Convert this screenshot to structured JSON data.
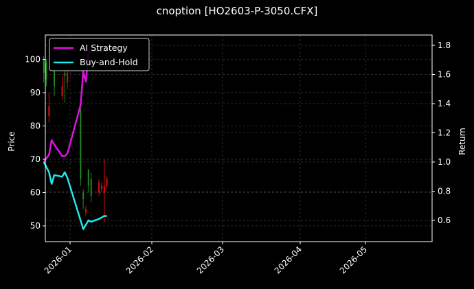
{
  "chart_data": {
    "type": "line",
    "title": "cnoption [HO2603-P-3050.CFX]",
    "xlabel": "",
    "ylabel": "Price",
    "y2label": "Return",
    "grid": true,
    "legend_position": "upper left",
    "x_ticks": [
      "2026-01",
      "2026-02",
      "2026-03",
      "2026-04",
      "2026-05"
    ],
    "y_ticks": [
      50,
      60,
      70,
      80,
      90,
      100
    ],
    "y2_ticks": [
      "0.6",
      "0.8",
      "1.0",
      "1.2",
      "1.4",
      "1.6",
      "1.8"
    ],
    "ylim": [
      45.2,
      107.3
    ],
    "y2lim": [
      0.45,
      1.87
    ],
    "legend": [
      "AI Strategy",
      "Buy-and-Hold"
    ],
    "colors": {
      "ai_strategy": "#e012e0",
      "buy_and_hold": "#22e8e8",
      "candle_up": "#1f8a1f",
      "candle_down": "#e01010",
      "background": "#000000",
      "grid": "#3a3a3a"
    },
    "series": [
      {
        "name": "AI Strategy",
        "axis": "right",
        "x": [
          "2025-12-22",
          "2025-12-24",
          "2025-12-25",
          "2025-12-26",
          "2025-12-29",
          "2025-12-30",
          "2025-12-31",
          "2026-01-05",
          "2026-01-06",
          "2026-01-07",
          "2026-01-08",
          "2026-01-09",
          "2026-01-12",
          "2026-01-13",
          "2026-01-14",
          "2026-01-15"
        ],
        "values": [
          1.0,
          1.05,
          1.15,
          1.12,
          1.04,
          1.04,
          1.06,
          1.39,
          1.62,
          1.55,
          1.75,
          1.76,
          1.76,
          1.76,
          1.76,
          1.76
        ]
      },
      {
        "name": "Buy-and-Hold",
        "axis": "right",
        "x": [
          "2025-12-22",
          "2025-12-24",
          "2025-12-25",
          "2025-12-26",
          "2025-12-29",
          "2025-12-30",
          "2025-12-31",
          "2026-01-05",
          "2026-01-06",
          "2026-01-07",
          "2026-01-08",
          "2026-01-09",
          "2026-01-12",
          "2026-01-13",
          "2026-01-14",
          "2026-01-15"
        ],
        "values": [
          1.0,
          0.93,
          0.85,
          0.91,
          0.9,
          0.93,
          0.89,
          0.6,
          0.54,
          0.57,
          0.6,
          0.59,
          0.61,
          0.62,
          0.63,
          0.63
        ]
      }
    ],
    "candles": [
      {
        "x": "2025-12-22",
        "open": 96,
        "high": 101,
        "low": 93,
        "close": 100,
        "dir": "up"
      },
      {
        "x": "2025-12-23",
        "open": 99,
        "high": 100,
        "low": 92,
        "close": 94,
        "dir": "up"
      },
      {
        "x": "2025-12-24",
        "open": 86,
        "high": 90,
        "low": 81,
        "close": 83,
        "dir": "down"
      },
      {
        "x": "2025-12-26",
        "open": 97,
        "high": 98,
        "low": 89,
        "close": 92,
        "dir": "up"
      },
      {
        "x": "2025-12-29",
        "open": 92,
        "high": 95,
        "low": 88,
        "close": 89,
        "dir": "down"
      },
      {
        "x": "2025-12-30",
        "open": 96,
        "high": 97,
        "low": 87,
        "close": 95,
        "dir": "up"
      },
      {
        "x": "2025-12-31",
        "open": 96,
        "high": 98,
        "low": 91,
        "close": 93,
        "dir": "down"
      },
      {
        "x": "2026-01-05",
        "open": 85,
        "high": 86,
        "low": 62,
        "close": 64,
        "dir": "up"
      },
      {
        "x": "2026-01-06",
        "open": 60,
        "high": 61,
        "low": 55,
        "close": 58,
        "dir": "up"
      },
      {
        "x": "2026-01-07",
        "open": 55,
        "high": 56,
        "low": 53,
        "close": 54,
        "dir": "down"
      },
      {
        "x": "2026-01-08",
        "open": 67,
        "high": 67,
        "low": 60,
        "close": 62,
        "dir": "up"
      },
      {
        "x": "2026-01-09",
        "open": 64,
        "high": 66,
        "low": 57,
        "close": 59,
        "dir": "up"
      },
      {
        "x": "2026-01-12",
        "open": 63,
        "high": 64,
        "low": 59,
        "close": 60,
        "dir": "down"
      },
      {
        "x": "2026-01-13",
        "open": 62,
        "high": 63,
        "low": 60,
        "close": 61,
        "dir": "down"
      },
      {
        "x": "2026-01-14",
        "open": 62,
        "high": 70,
        "low": 51,
        "close": 60,
        "dir": "down"
      },
      {
        "x": "2026-01-15",
        "open": 64,
        "high": 65,
        "low": 61,
        "close": 62,
        "dir": "down"
      }
    ]
  }
}
